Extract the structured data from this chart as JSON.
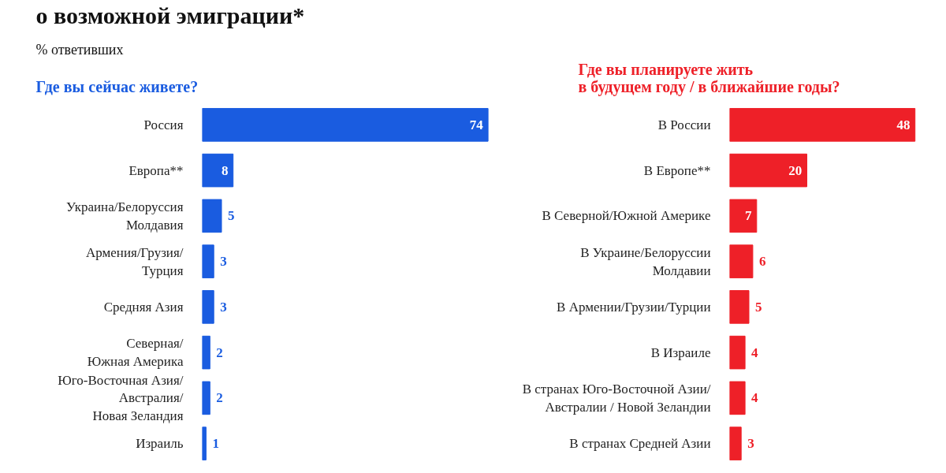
{
  "chart_data": [
    {
      "type": "bar",
      "orientation": "horizontal",
      "title": "Где вы сейчас живете?",
      "annotations": [
        "о возможной эмиграции*",
        "% ответивших"
      ],
      "categories": [
        "Россия",
        "Европа**",
        "Украина/Белоруссия\nМолдавия",
        "Армения/Грузия/\nТурция",
        "Средняя Азия",
        "Северная/\nЮжная Америка",
        "Юго-Восточная Азия/\nАвстралия/\nНовая Зеландия",
        "Израиль"
      ],
      "series": [
        {
          "color": "#1a5ce0",
          "values": [
            74,
            8,
            5,
            3,
            3,
            2,
            2,
            1
          ]
        }
      ],
      "data_labels": true,
      "grid": false
    },
    {
      "type": "bar",
      "orientation": "horizontal",
      "title": "Где вы планируете жить\nв будущем году / в ближайшие годы?",
      "categories": [
        "В России",
        "В Европе**",
        "В Северной/Южной Америке",
        "В Украине/Белоруссии\nМолдавии",
        "В Армении/Грузии/Турции",
        "В Израиле",
        "В странах Юго-Восточной Азии/\nАвстралии / Новой Зеландии",
        "В странах Средней Азии"
      ],
      "series": [
        {
          "color": "#ee2028",
          "values": [
            48,
            20,
            7,
            6,
            5,
            4,
            4,
            3
          ]
        }
      ],
      "data_labels": true,
      "grid": false
    }
  ]
}
